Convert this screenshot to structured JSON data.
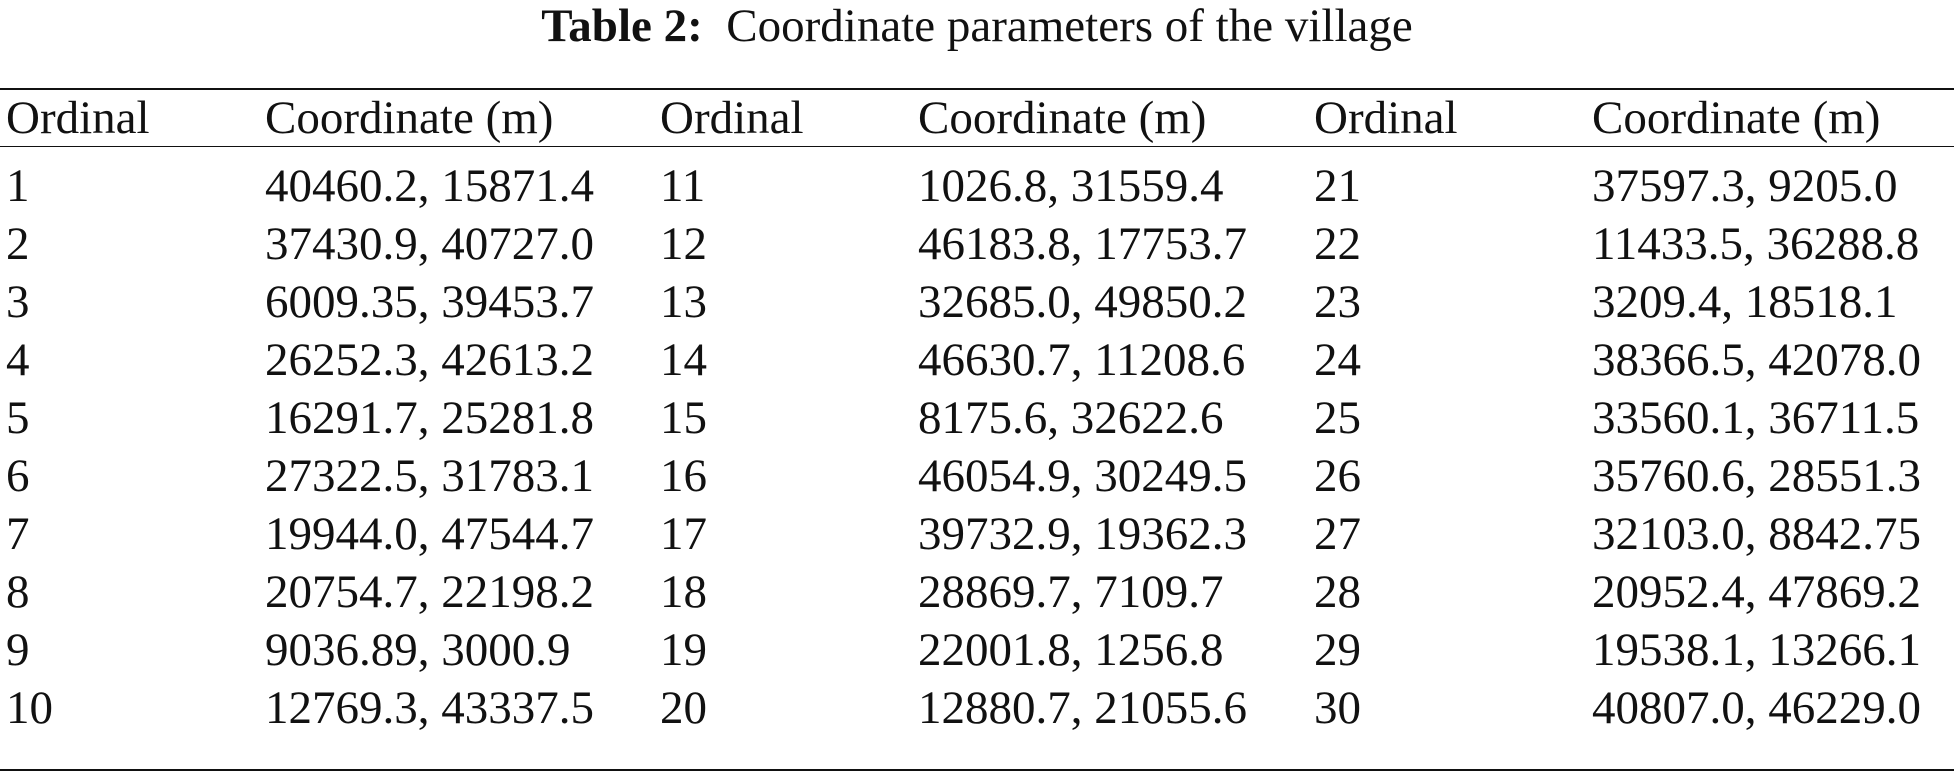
{
  "caption": {
    "label": "Table 2:",
    "text": "Coordinate parameters of the village"
  },
  "table": {
    "headers": [
      "Ordinal",
      "Coordinate (m)",
      "Ordinal",
      "Coordinate (m)",
      "Ordinal",
      "Coordinate (m)"
    ],
    "rows": [
      [
        "1",
        "40460.2, 15871.4",
        "11",
        "1026.8, 31559.4",
        "21",
        "37597.3, 9205.0"
      ],
      [
        "2",
        "37430.9, 40727.0",
        "12",
        "46183.8, 17753.7",
        "22",
        "11433.5, 36288.8"
      ],
      [
        "3",
        "6009.35, 39453.7",
        "13",
        "32685.0, 49850.2",
        "23",
        "3209.4, 18518.1"
      ],
      [
        "4",
        "26252.3, 42613.2",
        "14",
        "46630.7, 11208.6",
        "24",
        "38366.5, 42078.0"
      ],
      [
        "5",
        "16291.7, 25281.8",
        "15",
        "8175.6, 32622.6",
        "25",
        "33560.1, 36711.5"
      ],
      [
        "6",
        "27322.5, 31783.1",
        "16",
        "46054.9, 30249.5",
        "26",
        "35760.6, 28551.3"
      ],
      [
        "7",
        "19944.0, 47544.7",
        "17",
        "39732.9, 19362.3",
        "27",
        "32103.0, 8842.75"
      ],
      [
        "8",
        "20754.7, 22198.2",
        "18",
        "28869.7, 7109.7",
        "28",
        "20952.4, 47869.2"
      ],
      [
        "9",
        "9036.89, 3000.9",
        "19",
        "22001.8, 1256.8",
        "29",
        "19538.1, 13266.1"
      ],
      [
        "10",
        "12769.3, 43337.5",
        "20",
        "12880.7, 21055.6",
        "30",
        "40807.0, 46229.0"
      ]
    ]
  }
}
